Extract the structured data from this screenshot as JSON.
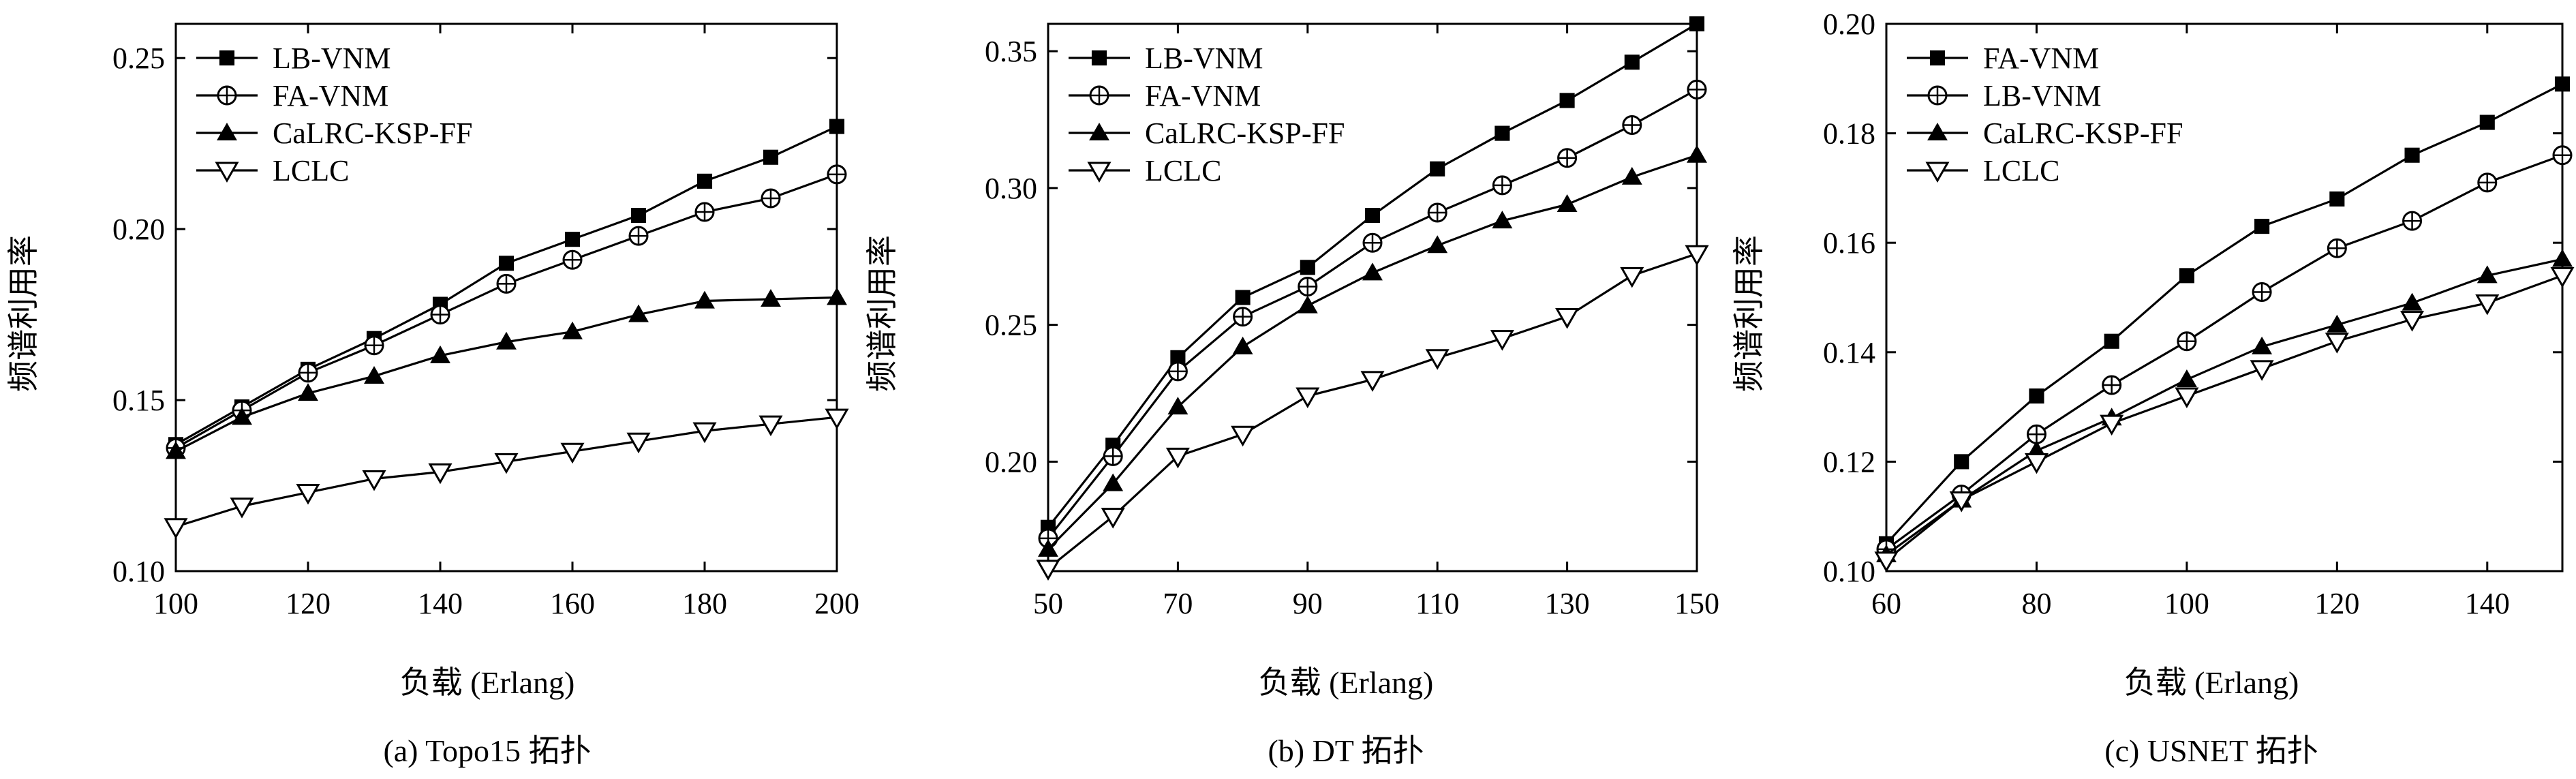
{
  "chart_data": [
    {
      "type": "line",
      "caption": "(a) Topo15 拓扑",
      "xlabel": "负载 (Erlang)",
      "ylabel": "频谱利用率",
      "xlim": [
        100,
        200
      ],
      "ylim": [
        0.1,
        0.26
      ],
      "xticks": [
        100,
        120,
        140,
        160,
        180,
        200
      ],
      "yticks": [
        0.1,
        0.15,
        0.2,
        0.25
      ],
      "ytick_labels": [
        "0.10",
        "0.15",
        "0.20",
        "0.25"
      ],
      "x": [
        100,
        110,
        120,
        130,
        140,
        150,
        160,
        170,
        180,
        190,
        200
      ],
      "legend_position": "top-left",
      "grid": false,
      "series": [
        {
          "name": "LB-VNM",
          "marker": "square",
          "values": [
            0.137,
            0.148,
            0.159,
            0.168,
            0.178,
            0.19,
            0.197,
            0.204,
            0.214,
            0.221,
            0.23
          ]
        },
        {
          "name": "FA-VNM",
          "marker": "circle-plus",
          "values": [
            0.136,
            0.147,
            0.158,
            0.166,
            0.175,
            0.184,
            0.191,
            0.198,
            0.205,
            0.209,
            0.216
          ]
        },
        {
          "name": "CaLRC-KSP-FF",
          "marker": "triangle-up",
          "values": [
            0.135,
            0.145,
            0.152,
            0.157,
            0.163,
            0.167,
            0.17,
            0.175,
            0.179,
            0.1795,
            0.18
          ]
        },
        {
          "name": "LCLC",
          "marker": "triangle-down",
          "values": [
            0.113,
            0.119,
            0.123,
            0.127,
            0.129,
            0.132,
            0.135,
            0.138,
            0.141,
            0.143,
            0.145
          ]
        }
      ]
    },
    {
      "type": "line",
      "caption": "(b) DT 拓扑",
      "xlabel": "负载 (Erlang)",
      "ylabel": "频谱利用率",
      "xlim": [
        50,
        150
      ],
      "ylim": [
        0.16,
        0.36
      ],
      "xticks": [
        50,
        70,
        90,
        110,
        130,
        150
      ],
      "yticks": [
        0.2,
        0.25,
        0.3,
        0.35
      ],
      "ytick_labels": [
        "0.20",
        "0.25",
        "0.30",
        "0.35"
      ],
      "x": [
        50,
        60,
        70,
        80,
        90,
        100,
        110,
        120,
        130,
        140,
        150
      ],
      "legend_position": "top-left",
      "grid": false,
      "series": [
        {
          "name": "LB-VNM",
          "marker": "square",
          "values": [
            0.176,
            0.206,
            0.238,
            0.26,
            0.271,
            0.29,
            0.307,
            0.32,
            0.332,
            0.346,
            0.36
          ]
        },
        {
          "name": "FA-VNM",
          "marker": "circle-plus",
          "values": [
            0.172,
            0.202,
            0.233,
            0.253,
            0.264,
            0.28,
            0.291,
            0.301,
            0.311,
            0.323,
            0.336
          ]
        },
        {
          "name": "CaLRC-KSP-FF",
          "marker": "triangle-up",
          "values": [
            0.168,
            0.192,
            0.22,
            0.242,
            0.257,
            0.269,
            0.279,
            0.288,
            0.294,
            0.304,
            0.312
          ]
        },
        {
          "name": "LCLC",
          "marker": "triangle-down",
          "values": [
            0.161,
            0.18,
            0.202,
            0.21,
            0.224,
            0.23,
            0.238,
            0.245,
            0.253,
            0.268,
            0.276
          ]
        }
      ]
    },
    {
      "type": "line",
      "caption": "(c) USNET 拓扑",
      "xlabel": "负载 (Erlang)",
      "ylabel": "频谱利用率",
      "xlim": [
        60,
        150
      ],
      "ylim": [
        0.1,
        0.2
      ],
      "xticks": [
        60,
        80,
        100,
        120,
        140
      ],
      "yticks": [
        0.1,
        0.12,
        0.14,
        0.16,
        0.18,
        0.2
      ],
      "ytick_labels": [
        "0.10",
        "0.12",
        "0.14",
        "0.16",
        "0.18",
        "0.20"
      ],
      "x": [
        60,
        70,
        80,
        90,
        100,
        110,
        120,
        130,
        140,
        150
      ],
      "legend_position": "top-left",
      "grid": false,
      "series": [
        {
          "name": "FA-VNM",
          "marker": "square",
          "values": [
            0.105,
            0.12,
            0.132,
            0.142,
            0.154,
            0.163,
            0.168,
            0.176,
            0.182,
            0.189
          ]
        },
        {
          "name": "LB-VNM",
          "marker": "circle-plus",
          "values": [
            0.104,
            0.114,
            0.125,
            0.134,
            0.142,
            0.151,
            0.159,
            0.164,
            0.171,
            0.176
          ]
        },
        {
          "name": "CaLRC-KSP-FF",
          "marker": "triangle-up",
          "values": [
            0.103,
            0.113,
            0.122,
            0.128,
            0.135,
            0.141,
            0.145,
            0.149,
            0.154,
            0.157
          ]
        },
        {
          "name": "LCLC",
          "marker": "triangle-down",
          "values": [
            0.102,
            0.113,
            0.12,
            0.127,
            0.132,
            0.137,
            0.142,
            0.146,
            0.149,
            0.154
          ]
        }
      ]
    }
  ]
}
